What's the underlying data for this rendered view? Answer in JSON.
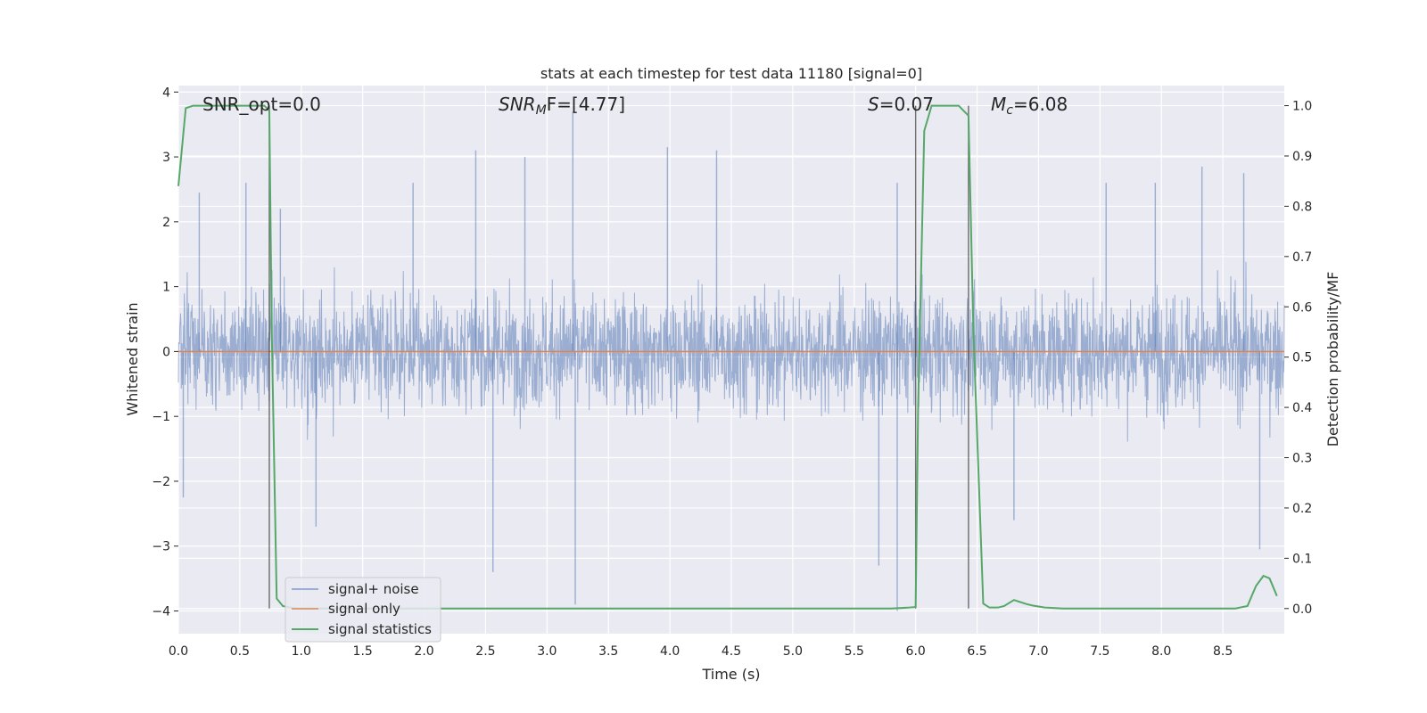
{
  "chart_data": {
    "type": "line",
    "title": "stats at each timestep for test data 11180 [signal=0]",
    "xlabel": "Time (s)",
    "ylabel_left": "Whitened strain",
    "ylabel_right": "Detection probability/MF",
    "xlim": [
      0.0,
      9.0
    ],
    "ylim_left": [
      -4.35,
      4.1
    ],
    "ylim_right": [
      -0.05,
      1.04
    ],
    "x_ticks": [
      "0.0",
      "0.5",
      "1.0",
      "1.5",
      "2.0",
      "2.5",
      "3.0",
      "3.5",
      "4.0",
      "4.5",
      "5.0",
      "5.5",
      "6.0",
      "6.5",
      "7.0",
      "7.5",
      "8.0",
      "8.5"
    ],
    "y_left_ticks": [
      "4",
      "3",
      "2",
      "1",
      "0",
      "−1",
      "−2",
      "−3",
      "−4"
    ],
    "y_right_ticks": [
      "1.0",
      "0.9",
      "0.8",
      "0.7",
      "0.6",
      "0.5",
      "0.4",
      "0.3",
      "0.2",
      "0.1",
      "0.0"
    ],
    "grid": true,
    "legend_position": "lower-left",
    "annotations": {
      "snr_opt": "SNR_opt=0.0",
      "snr_mf_sym": "SNR",
      "snr_mf_sub": "M",
      "snr_mf_rest": "F=[4.77]",
      "s_sym": "S",
      "s_rest": "=0.07",
      "mc_sym": "M",
      "mc_sub": "c",
      "mc_rest": "=6.08"
    },
    "vertical_lines_x": [
      0.74,
      6.0,
      6.43
    ],
    "series": [
      {
        "name": "signal+ noise",
        "color": "#4c72b0",
        "axis": "left",
        "style": "dense noise, approx. band -1.6 to 1.6 with peaks to +3.7 and -4.0",
        "envelope_peaks_upper": [
          [
            0.17,
            2.45
          ],
          [
            0.55,
            2.6
          ],
          [
            0.83,
            2.2
          ],
          [
            1.91,
            2.6
          ],
          [
            2.42,
            3.1
          ],
          [
            2.82,
            3.0
          ],
          [
            3.21,
            3.7
          ],
          [
            3.98,
            3.15
          ],
          [
            4.38,
            3.1
          ],
          [
            5.85,
            2.6
          ],
          [
            7.55,
            2.6
          ],
          [
            7.95,
            2.6
          ],
          [
            8.33,
            2.85
          ],
          [
            8.67,
            2.75
          ]
        ],
        "envelope_peaks_lower": [
          [
            0.04,
            -2.25
          ],
          [
            1.12,
            -2.7
          ],
          [
            2.56,
            -3.4
          ],
          [
            3.23,
            -3.9
          ],
          [
            5.7,
            -3.3
          ],
          [
            5.85,
            -4.0
          ],
          [
            6.8,
            -2.6
          ],
          [
            8.8,
            -3.05
          ]
        ]
      },
      {
        "name": "signal only",
        "color": "#dd8452",
        "axis": "left",
        "x": [
          0.0,
          9.0
        ],
        "y": [
          0.0,
          0.0
        ]
      },
      {
        "name": "signal statistics",
        "color": "#55a868",
        "axis": "right",
        "x": [
          0.0,
          0.06,
          0.12,
          0.25,
          0.4,
          0.55,
          0.7,
          0.74,
          0.76,
          0.8,
          0.85,
          0.95,
          1.5,
          3.0,
          5.0,
          5.8,
          5.95,
          6.0,
          6.02,
          6.07,
          6.13,
          6.2,
          6.35,
          6.43,
          6.47,
          6.55,
          6.6,
          6.67,
          6.72,
          6.8,
          6.9,
          6.95,
          7.05,
          7.2,
          8.0,
          8.6,
          8.7,
          8.77,
          8.83,
          8.88,
          8.94
        ],
        "y": [
          0.84,
          0.995,
          1.0,
          1.0,
          1.0,
          1.0,
          1.0,
          0.99,
          0.55,
          0.02,
          0.005,
          0.0,
          0.0,
          0.0,
          0.0,
          0.0,
          0.002,
          0.003,
          0.4,
          0.95,
          1.0,
          1.0,
          1.0,
          0.98,
          0.55,
          0.01,
          0.002,
          0.002,
          0.005,
          0.017,
          0.009,
          0.006,
          0.002,
          0.0,
          0.0,
          0.0,
          0.005,
          0.045,
          0.065,
          0.06,
          0.025
        ]
      }
    ]
  }
}
